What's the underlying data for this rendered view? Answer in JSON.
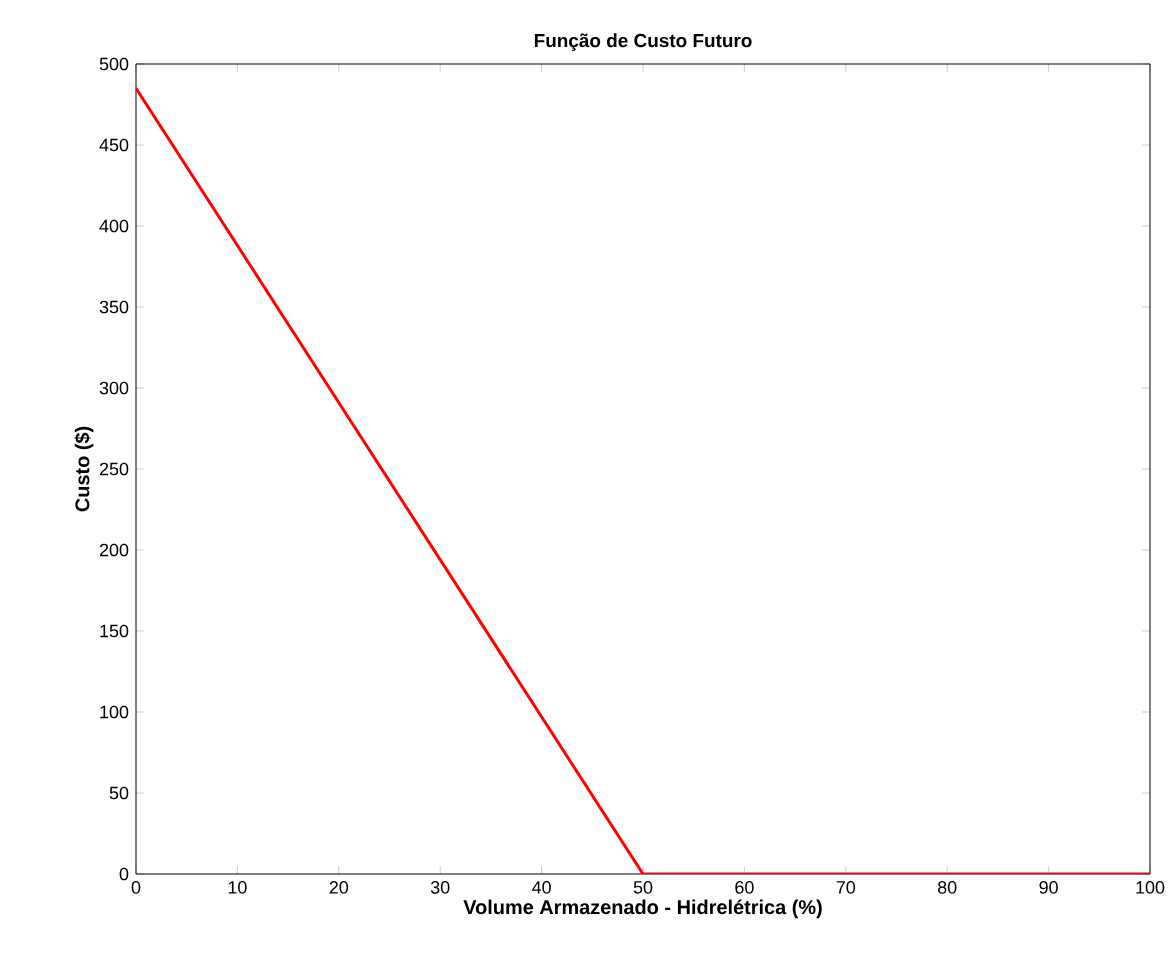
{
  "chart_data": {
    "type": "line",
    "title": "Função de Custo Futuro",
    "xlabel": "Volume Armazenado - Hidrelétrica (%)",
    "ylabel": "Custo ($)",
    "x": [
      0,
      50,
      100
    ],
    "series": [
      {
        "color": "#ff0000",
        "values": [
          485,
          0,
          0
        ]
      }
    ],
    "xlim": [
      0,
      100
    ],
    "xticks": [
      0,
      10,
      20,
      30,
      40,
      50,
      60,
      70,
      80,
      90,
      100
    ],
    "ylim": [
      0,
      500
    ],
    "yticks": [
      0,
      50,
      100,
      150,
      200,
      250,
      300,
      350,
      400,
      450,
      500
    ],
    "grid": false,
    "line_style": "solid"
  }
}
